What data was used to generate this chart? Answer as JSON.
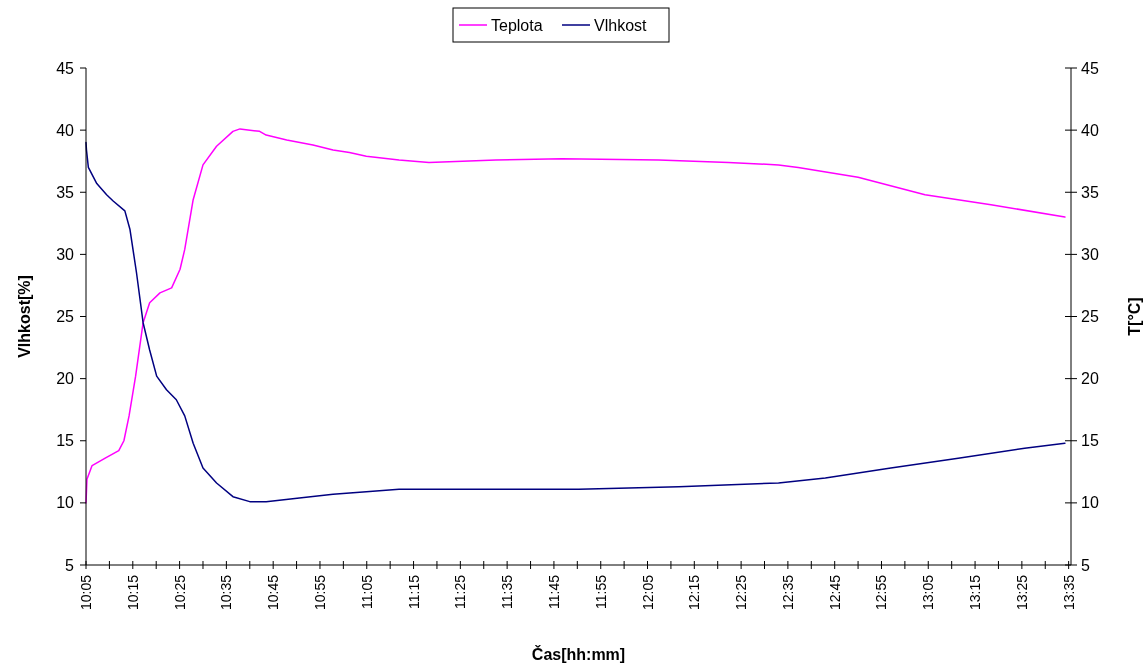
{
  "chart_data": {
    "type": "line",
    "xlabel": "Čas[hh:mm]",
    "ylabel": "Vlhkost[%]",
    "y2label": "T[°C]",
    "legend": "top",
    "grid": false,
    "line_style": "solid",
    "xlim": [
      10.0833,
      13.5917
    ],
    "ylim": [
      5,
      45
    ],
    "y2lim": [
      5,
      45
    ],
    "yticks": [
      5,
      10,
      15,
      20,
      25,
      30,
      35,
      40,
      45
    ],
    "y2ticks": [
      5,
      10,
      15,
      20,
      25,
      30,
      35,
      40,
      45
    ],
    "xticks": [
      {
        "value": 10.0833,
        "label": "10:05"
      },
      {
        "value": 10.1667,
        "label": null
      },
      {
        "value": 10.25,
        "label": "10:15"
      },
      {
        "value": 10.3333,
        "label": null
      },
      {
        "value": 10.4167,
        "label": "10:25"
      },
      {
        "value": 10.5,
        "label": null
      },
      {
        "value": 10.5833,
        "label": "10:35"
      },
      {
        "value": 10.6667,
        "label": null
      },
      {
        "value": 10.75,
        "label": "10:45"
      },
      {
        "value": 10.8333,
        "label": null
      },
      {
        "value": 10.9167,
        "label": "10:55"
      },
      {
        "value": 11.0,
        "label": null
      },
      {
        "value": 11.0833,
        "label": "11:05"
      },
      {
        "value": 11.1667,
        "label": null
      },
      {
        "value": 11.25,
        "label": "11:15"
      },
      {
        "value": 11.3333,
        "label": null
      },
      {
        "value": 11.4167,
        "label": "11:25"
      },
      {
        "value": 11.5,
        "label": null
      },
      {
        "value": 11.5833,
        "label": "11:35"
      },
      {
        "value": 11.6667,
        "label": null
      },
      {
        "value": 11.75,
        "label": "11:45"
      },
      {
        "value": 11.8333,
        "label": null
      },
      {
        "value": 11.9167,
        "label": "11:55"
      },
      {
        "value": 12.0,
        "label": null
      },
      {
        "value": 12.0833,
        "label": "12:05"
      },
      {
        "value": 12.1667,
        "label": null
      },
      {
        "value": 12.25,
        "label": "12:15"
      },
      {
        "value": 12.3333,
        "label": null
      },
      {
        "value": 12.4167,
        "label": "12:25"
      },
      {
        "value": 12.5,
        "label": null
      },
      {
        "value": 12.5833,
        "label": "12:35"
      },
      {
        "value": 12.6667,
        "label": null
      },
      {
        "value": 12.75,
        "label": "12:45"
      },
      {
        "value": 12.8333,
        "label": null
      },
      {
        "value": 12.9167,
        "label": "12:55"
      },
      {
        "value": 13.0,
        "label": null
      },
      {
        "value": 13.0833,
        "label": "13:05"
      },
      {
        "value": 13.1667,
        "label": null
      },
      {
        "value": 13.25,
        "label": "13:15"
      },
      {
        "value": 13.3333,
        "label": null
      },
      {
        "value": 13.4167,
        "label": "13:25"
      },
      {
        "value": 13.5,
        "label": null
      },
      {
        "value": 13.5833,
        "label": "13:35"
      }
    ],
    "series": [
      {
        "name": "Teplota",
        "color": "#ff00ff",
        "x": [
          10.0833,
          10.0867,
          10.105,
          10.1517,
          10.2,
          10.2183,
          10.2367,
          10.26,
          10.2867,
          10.31,
          10.3467,
          10.3883,
          10.4183,
          10.435,
          10.465,
          10.5,
          10.5483,
          10.6067,
          10.6317,
          10.7017,
          10.725,
          10.7983,
          10.8917,
          10.9633,
          11.0217,
          11.0817,
          11.1983,
          11.305,
          11.5433,
          11.7783,
          12.1233,
          12.3717,
          12.55,
          12.62,
          12.8333,
          13.0717,
          13.3067,
          13.57
        ],
        "values": [
          10.0,
          11.9,
          13.0,
          13.6,
          14.2,
          15.0,
          17.0,
          20.2,
          24.5,
          26.1,
          26.9,
          27.3,
          28.8,
          30.4,
          34.4,
          37.2,
          38.7,
          39.9,
          40.1,
          39.9,
          39.6,
          39.2,
          38.8,
          38.4,
          38.2,
          37.9,
          37.6,
          37.4,
          37.6,
          37.7,
          37.6,
          37.4,
          37.2,
          37.0,
          36.2,
          34.8,
          34.0,
          33.0
        ]
      },
      {
        "name": "Vlhkost",
        "color": "#000080",
        "x": [
          10.0833,
          10.085,
          10.0917,
          10.1217,
          10.1567,
          10.18,
          10.2217,
          10.24,
          10.2633,
          10.2867,
          10.31,
          10.335,
          10.37,
          10.405,
          10.435,
          10.465,
          10.5,
          10.5483,
          10.6067,
          10.6667,
          10.725,
          10.8433,
          10.9633,
          11.0817,
          11.1983,
          11.4833,
          11.8383,
          12.195,
          12.55,
          12.7167,
          12.95,
          13.19,
          13.4267,
          13.57
        ],
        "values": [
          39.0,
          38.4,
          37.0,
          35.7,
          34.8,
          34.3,
          33.5,
          32.0,
          28.5,
          24.5,
          22.3,
          20.2,
          19.1,
          18.3,
          17.0,
          14.8,
          12.8,
          11.6,
          10.5,
          10.1,
          10.1,
          10.4,
          10.7,
          10.9,
          11.1,
          11.1,
          11.1,
          11.3,
          11.6,
          12.0,
          12.8,
          13.6,
          14.4,
          14.8
        ]
      }
    ]
  }
}
